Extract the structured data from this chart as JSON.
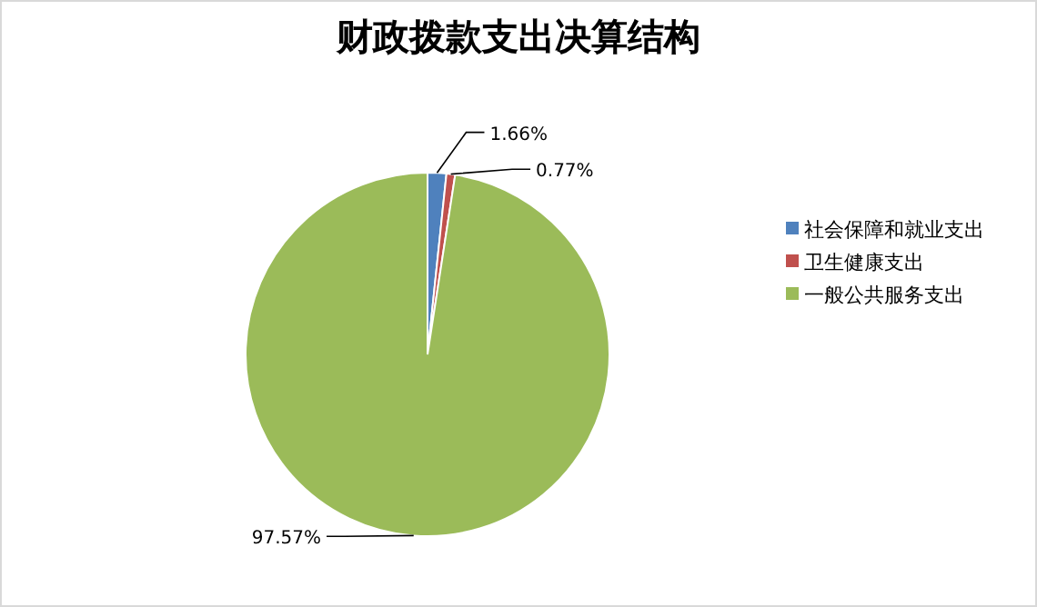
{
  "chart_data": {
    "type": "pie",
    "title": "财政拨款支出决算结构",
    "categories": [
      "社会保障和就业支出",
      "卫生健康支出",
      "一般公共服务支出"
    ],
    "values": [
      1.66,
      0.77,
      97.57
    ],
    "colors": [
      "#4f81bd",
      "#c0504d",
      "#9bbb59"
    ],
    "value_labels": [
      "1.66%",
      "0.77%",
      "97.57%"
    ],
    "legend": "right"
  }
}
